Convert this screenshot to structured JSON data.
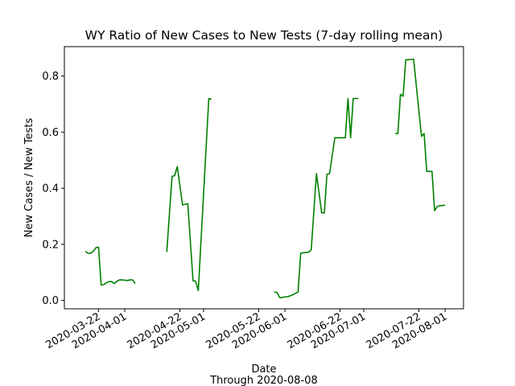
{
  "chart_data": {
    "type": "line",
    "title": "WY Ratio of New Cases to New Tests (7-day rolling mean)",
    "xlabel": "Date",
    "xlabel_sub": "Through 2020-08-08",
    "ylabel": "New Cases / New Tests",
    "x_ticks": [
      "2020-03-22",
      "2020-04-01",
      "2020-04-22",
      "2020-05-01",
      "2020-05-22",
      "2020-06-01",
      "2020-06-22",
      "2020-07-01",
      "2020-07-22",
      "2020-08-01"
    ],
    "y_ticks": [
      0.0,
      0.2,
      0.4,
      0.6,
      0.8
    ],
    "ylim": [
      -0.03,
      0.905
    ],
    "xlim": [
      "2020-03-09",
      "2020-08-08"
    ],
    "grid": false,
    "series": [
      {
        "color": "#008000",
        "segments": [
          [
            [
              "2020-03-17",
              0.175
            ],
            [
              "2020-03-18",
              0.168
            ],
            [
              "2020-03-19",
              0.168
            ],
            [
              "2020-03-20",
              0.175
            ],
            [
              "2020-03-21",
              0.188
            ],
            [
              "2020-03-22",
              0.19
            ],
            [
              "2020-03-23",
              0.055
            ],
            [
              "2020-03-24",
              0.056
            ],
            [
              "2020-03-25",
              0.063
            ],
            [
              "2020-03-26",
              0.067
            ],
            [
              "2020-03-27",
              0.067
            ],
            [
              "2020-03-28",
              0.06
            ],
            [
              "2020-03-29",
              0.068
            ],
            [
              "2020-03-30",
              0.073
            ],
            [
              "2020-03-31",
              0.073
            ],
            [
              "2020-04-01",
              0.072
            ],
            [
              "2020-04-02",
              0.071
            ],
            [
              "2020-04-03",
              0.073
            ],
            [
              "2020-04-04",
              0.073
            ],
            [
              "2020-04-05",
              0.06
            ]
          ],
          [
            [
              "2020-04-17",
              0.172
            ],
            [
              "2020-04-19",
              0.442
            ],
            [
              "2020-04-20",
              0.445
            ],
            [
              "2020-04-21",
              0.477
            ],
            [
              "2020-04-23",
              0.34
            ],
            [
              "2020-04-25",
              0.345
            ],
            [
              "2020-04-27",
              0.07
            ],
            [
              "2020-04-28",
              0.068
            ],
            [
              "2020-04-29",
              0.035
            ],
            [
              "2020-05-03",
              0.72
            ],
            [
              "2020-05-04",
              0.717
            ]
          ],
          [
            [
              "2020-05-28",
              0.03
            ],
            [
              "2020-05-29",
              0.028
            ],
            [
              "2020-05-30",
              0.01
            ],
            [
              "2020-05-31",
              0.01
            ],
            [
              "2020-06-01",
              0.013
            ],
            [
              "2020-06-02",
              0.013
            ],
            [
              "2020-06-04",
              0.02
            ],
            [
              "2020-06-06",
              0.03
            ],
            [
              "2020-06-07",
              0.168
            ],
            [
              "2020-06-08",
              0.17
            ],
            [
              "2020-06-10",
              0.172
            ],
            [
              "2020-06-11",
              0.18
            ],
            [
              "2020-06-13",
              0.452
            ],
            [
              "2020-06-15",
              0.312
            ],
            [
              "2020-06-16",
              0.312
            ],
            [
              "2020-06-17",
              0.45
            ],
            [
              "2020-06-18",
              0.452
            ],
            [
              "2020-06-20",
              0.58
            ],
            [
              "2020-06-24",
              0.58
            ],
            [
              "2020-06-25",
              0.72
            ],
            [
              "2020-06-26",
              0.58
            ],
            [
              "2020-06-27",
              0.72
            ],
            [
              "2020-06-29",
              0.72
            ]
          ],
          [
            [
              "2020-07-13",
              0.595
            ],
            [
              "2020-07-14",
              0.595
            ],
            [
              "2020-07-15",
              0.735
            ],
            [
              "2020-07-16",
              0.728
            ],
            [
              "2020-07-17",
              0.858
            ],
            [
              "2020-07-20",
              0.86
            ],
            [
              "2020-07-23",
              0.585
            ],
            [
              "2020-07-24",
              0.595
            ],
            [
              "2020-07-25",
              0.46
            ],
            [
              "2020-07-27",
              0.46
            ],
            [
              "2020-07-28",
              0.32
            ],
            [
              "2020-07-29",
              0.335
            ],
            [
              "2020-07-30",
              0.338
            ],
            [
              "2020-07-31",
              0.338
            ],
            [
              "2020-08-01",
              0.34
            ]
          ]
        ]
      }
    ]
  }
}
